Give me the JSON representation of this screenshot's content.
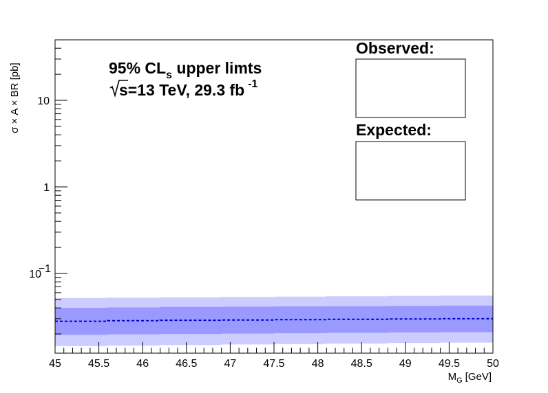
{
  "chart_data": {
    "type": "area",
    "xlabel": "M",
    "xlabel_sub": "G",
    "xlabel_unit": "[GeV]",
    "ylabel": "σ × A × BR [pb]",
    "xlim": [
      45,
      50
    ],
    "ylim": [
      0.012,
      50
    ],
    "y_scale": "log",
    "x_ticks": [
      "45",
      "45.5",
      "46",
      "46.5",
      "47",
      "47.5",
      "48",
      "48.5",
      "49",
      "49.5",
      "50"
    ],
    "y_ticks": {
      "1": "1",
      "10": "10",
      "0.1": {
        "base": "10",
        "exp": "−1"
      }
    },
    "grid": false,
    "annotation": {
      "line1_a": "95% CL",
      "line1_sub": "s",
      "line1_b": " upper limts",
      "line2_root": "s",
      "line2_a": "=13 TeV, 29.3 fb",
      "line2_sup": "-1"
    },
    "legend": {
      "observed_label": "Observed:",
      "expected_label": "Expected:"
    },
    "series": [
      {
        "name": "Expected:",
        "style": "dashed",
        "x": [
          45,
          45.6,
          46.2,
          46.9,
          47.5,
          48.1,
          48.8,
          49.4,
          50
        ],
        "expected": [
          0.028,
          0.0285,
          0.0288,
          0.029,
          0.0292,
          0.0295,
          0.0298,
          0.03,
          0.0303
        ],
        "band1_low": [
          0.0195,
          0.0198,
          0.02,
          0.0202,
          0.0204,
          0.0206,
          0.0208,
          0.021,
          0.0212
        ],
        "band1_high": [
          0.04,
          0.0405,
          0.041,
          0.0413,
          0.0416,
          0.0419,
          0.0422,
          0.0425,
          0.043
        ],
        "band2_low": [
          0.0145,
          0.0147,
          0.0149,
          0.0151,
          0.0153,
          0.0155,
          0.0157,
          0.0159,
          0.0161
        ],
        "band2_high": [
          0.052,
          0.0525,
          0.053,
          0.0535,
          0.054,
          0.0545,
          0.055,
          0.0555,
          0.056
        ]
      }
    ],
    "colors": {
      "band_outer": "#ccccff",
      "band_inner": "#9999ff",
      "expected_line": "#0000cc",
      "frame": "#000000"
    }
  }
}
